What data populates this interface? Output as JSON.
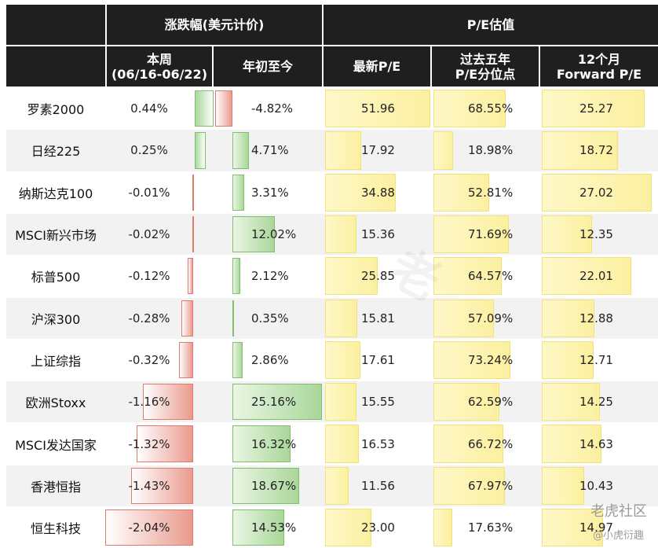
{
  "headers": {
    "group_change": "涨跌幅(美元计价)",
    "group_pe": "P/E估值",
    "week_line1": "本周",
    "week_line2": "(06/16-06/22)",
    "ytd": "年初至今",
    "latest_pe": "最新P/E",
    "pct5y_line1": "过去五年",
    "pct5y_line2": "P/E分位点",
    "fwd_line1": "12个月",
    "fwd_line2": "Forward P/E"
  },
  "chart_data": {
    "type": "table",
    "columns": [
      "本周 (06/16-06/22)",
      "年初至今",
      "最新P/E",
      "过去五年P/E分位点",
      "12个月Forward P/E"
    ],
    "rows": [
      {
        "name": "罗素2000",
        "week": "0.44%",
        "week_v": 0.44,
        "ytd": "-4.82%",
        "ytd_v": -4.82,
        "pe": "51.96",
        "pe_v": 51.96,
        "pct5": "68.55%",
        "pct5_v": 68.55,
        "fpe": "25.27",
        "fpe_v": 25.27
      },
      {
        "name": "日经225",
        "week": "0.25%",
        "week_v": 0.25,
        "ytd": "4.71%",
        "ytd_v": 4.71,
        "pe": "17.92",
        "pe_v": 17.92,
        "pct5": "18.98%",
        "pct5_v": 18.98,
        "fpe": "18.72",
        "fpe_v": 18.72
      },
      {
        "name": "纳斯达克100",
        "week": "-0.01%",
        "week_v": -0.01,
        "ytd": "3.31%",
        "ytd_v": 3.31,
        "pe": "34.88",
        "pe_v": 34.88,
        "pct5": "52.81%",
        "pct5_v": 52.81,
        "fpe": "27.02",
        "fpe_v": 27.02
      },
      {
        "name": "MSCI新兴市场",
        "week": "-0.02%",
        "week_v": -0.02,
        "ytd": "12.02%",
        "ytd_v": 12.02,
        "pe": "15.36",
        "pe_v": 15.36,
        "pct5": "71.69%",
        "pct5_v": 71.69,
        "fpe": "12.35",
        "fpe_v": 12.35
      },
      {
        "name": "标普500",
        "week": "-0.12%",
        "week_v": -0.12,
        "ytd": "2.12%",
        "ytd_v": 2.12,
        "pe": "25.85",
        "pe_v": 25.85,
        "pct5": "64.57%",
        "pct5_v": 64.57,
        "fpe": "22.01",
        "fpe_v": 22.01
      },
      {
        "name": "沪深300",
        "week": "-0.28%",
        "week_v": -0.28,
        "ytd": "0.35%",
        "ytd_v": 0.35,
        "pe": "15.81",
        "pe_v": 15.81,
        "pct5": "57.09%",
        "pct5_v": 57.09,
        "fpe": "12.88",
        "fpe_v": 12.88
      },
      {
        "name": "上证综指",
        "week": "-0.32%",
        "week_v": -0.32,
        "ytd": "2.86%",
        "ytd_v": 2.86,
        "pe": "17.61",
        "pe_v": 17.61,
        "pct5": "73.24%",
        "pct5_v": 73.24,
        "fpe": "12.71",
        "fpe_v": 12.71
      },
      {
        "name": "欧洲Stoxx",
        "week": "-1.16%",
        "week_v": -1.16,
        "ytd": "25.16%",
        "ytd_v": 25.16,
        "pe": "15.55",
        "pe_v": 15.55,
        "pct5": "62.59%",
        "pct5_v": 62.59,
        "fpe": "14.25",
        "fpe_v": 14.25
      },
      {
        "name": "MSCI发达国家",
        "week": "-1.32%",
        "week_v": -1.32,
        "ytd": "16.32%",
        "ytd_v": 16.32,
        "pe": "16.53",
        "pe_v": 16.53,
        "pct5": "66.72%",
        "pct5_v": 66.72,
        "fpe": "14.63",
        "fpe_v": 14.63
      },
      {
        "name": "香港恒指",
        "week": "-1.43%",
        "week_v": -1.43,
        "ytd": "18.67%",
        "ytd_v": 18.67,
        "pe": "11.56",
        "pe_v": 11.56,
        "pct5": "67.97%",
        "pct5_v": 67.97,
        "fpe": "10.43",
        "fpe_v": 10.43
      },
      {
        "name": "恒生科技",
        "week": "-2.04%",
        "week_v": -2.04,
        "ytd": "14.53%",
        "ytd_v": 14.53,
        "pe": "23.00",
        "pe_v": 23.0,
        "pct5": "17.63%",
        "pct5_v": 17.63,
        "fpe": "14.97",
        "fpe_v": 14.97
      }
    ]
  },
  "colors": {
    "header_bg": "#1f1f1f",
    "row_alt": "#f2f2f2",
    "pos_bar": "#a9d79a",
    "neg_bar": "#ea9a8e",
    "pe_bar": "#fbf0a0"
  },
  "watermark": {
    "brand": "老虎社区",
    "author": "@小虎衍趣"
  }
}
